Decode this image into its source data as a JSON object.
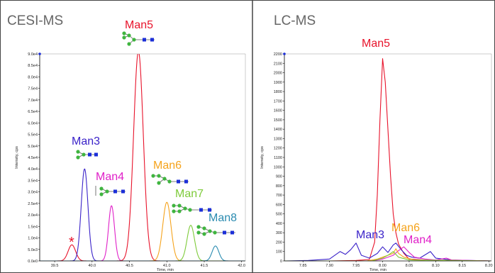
{
  "colors": {
    "man5": "#e8132b",
    "man3": "#3a22c9",
    "man4": "#e020c8",
    "man6": "#f5a31c",
    "man7": "#7ecb3a",
    "man8": "#2a8bb0",
    "impurity": "#e8132b",
    "glycan_node": "#3fb53f",
    "glycan_square": "#1c2fd8"
  },
  "chart_data": [
    {
      "type": "line",
      "title": "CESI-MS",
      "xlabel": "Time, min",
      "ylabel": "Intensity, cps",
      "xlim": [
        39.3,
        42.05
      ],
      "ylim": [
        0,
        90000
      ],
      "x_ticks": [
        39.5,
        40.0,
        40.5,
        41.0,
        41.5,
        42.0
      ],
      "x_tick_labels": [
        "39.5",
        "40.0",
        "40.5",
        "41.0",
        "41.5",
        "42.0"
      ],
      "y_ticks": [
        0,
        5000,
        10000,
        15000,
        20000,
        25000,
        30000,
        35000,
        40000,
        45000,
        50000,
        55000,
        60000,
        65000,
        70000,
        75000,
        80000,
        85000,
        90000
      ],
      "y_tick_labels": [
        "0.0e0",
        "5.0e3",
        "1.0e4",
        "1.5e4",
        "2.0e4",
        "2.5e4",
        "3.0e4",
        "3.5e4",
        "4.0e4",
        "4.5e4",
        "5.0e4",
        "5.5e4",
        "6.0e4",
        "6.5e4",
        "7.0e4",
        "7.5e4",
        "8.0e4",
        "8.5e4",
        "9.0e4"
      ],
      "series": [
        {
          "name": "*",
          "color_key": "impurity",
          "center": 39.73,
          "height": 7000,
          "width": 0.05
        },
        {
          "name": "Man3",
          "color_key": "man3",
          "center": 39.9,
          "height": 40000,
          "width": 0.045
        },
        {
          "name": "Man4",
          "color_key": "man4",
          "center": 40.26,
          "height": 24000,
          "width": 0.04
        },
        {
          "name": "Man5",
          "color_key": "man5",
          "center": 40.62,
          "height": 91000,
          "width": 0.065
        },
        {
          "name": "Man6",
          "color_key": "man6",
          "center": 41.0,
          "height": 25500,
          "width": 0.055
        },
        {
          "name": "Man7",
          "color_key": "man7",
          "center": 41.32,
          "height": 15500,
          "width": 0.05
        },
        {
          "name": "Man8",
          "color_key": "man8",
          "center": 41.65,
          "height": 6500,
          "width": 0.045
        }
      ],
      "annotations": [
        {
          "text": "*",
          "color_key": "impurity"
        },
        {
          "text": "Man3",
          "color_key": "man3"
        },
        {
          "text": "Man4",
          "color_key": "man4"
        },
        {
          "text": "Man5",
          "color_key": "man5"
        },
        {
          "text": "Man6",
          "color_key": "man6"
        },
        {
          "text": "Man7",
          "color_key": "man7"
        },
        {
          "text": "Man8",
          "color_key": "man8"
        }
      ]
    },
    {
      "type": "line",
      "title": "LC-MS",
      "xlabel": "Time, min",
      "ylabel": "Intensity, cps",
      "xlim": [
        7.815,
        8.205
      ],
      "ylim": [
        0,
        2200
      ],
      "x_ticks": [
        7.85,
        7.9,
        7.95,
        8.0,
        8.05,
        8.1,
        8.15,
        8.2
      ],
      "x_tick_labels": [
        "7.85",
        "7.90",
        "7.95",
        "8.00",
        "8.05",
        "8.10",
        "8.15",
        "8.20"
      ],
      "y_ticks": [
        0,
        100,
        200,
        300,
        400,
        500,
        600,
        700,
        800,
        900,
        1000,
        1100,
        1200,
        1300,
        1400,
        1500,
        1600,
        1700,
        1800,
        1900,
        2000,
        2100,
        2200
      ],
      "y_tick_labels": [
        "0",
        "100",
        "200",
        "300",
        "400",
        "500",
        "600",
        "700",
        "800",
        "900",
        "1000",
        "1100",
        "1200",
        "1300",
        "1400",
        "1500",
        "1600",
        "1700",
        "1800",
        "1900",
        "2000",
        "2100",
        "2200"
      ],
      "series": [
        {
          "name": "Man5",
          "color_key": "man5",
          "points": [
            [
              7.815,
              0
            ],
            [
              7.9,
              0
            ],
            [
              7.95,
              5
            ],
            [
              7.975,
              15
            ],
            [
              7.985,
              200
            ],
            [
              7.99,
              700
            ],
            [
              7.995,
              1500
            ],
            [
              8.0,
              2150
            ],
            [
              8.005,
              1900
            ],
            [
              8.01,
              1400
            ],
            [
              8.015,
              900
            ],
            [
              8.02,
              500
            ],
            [
              8.025,
              300
            ],
            [
              8.03,
              180
            ],
            [
              8.04,
              80
            ],
            [
              8.05,
              20
            ],
            [
              8.08,
              10
            ],
            [
              8.205,
              0
            ]
          ]
        },
        {
          "name": "Man3",
          "color_key": "man3",
          "points": [
            [
              7.815,
              0
            ],
            [
              7.86,
              5
            ],
            [
              7.9,
              20
            ],
            [
              7.92,
              100
            ],
            [
              7.93,
              70
            ],
            [
              7.94,
              120
            ],
            [
              7.95,
              190
            ],
            [
              7.96,
              60
            ],
            [
              7.975,
              30
            ],
            [
              7.99,
              80
            ],
            [
              8.0,
              150
            ],
            [
              8.01,
              90
            ],
            [
              8.02,
              170
            ],
            [
              8.025,
              190
            ],
            [
              8.035,
              120
            ],
            [
              8.045,
              60
            ],
            [
              8.055,
              40
            ],
            [
              8.07,
              30
            ],
            [
              8.09,
              100
            ],
            [
              8.1,
              30
            ],
            [
              8.13,
              10
            ],
            [
              8.205,
              0
            ]
          ]
        },
        {
          "name": "Man4",
          "color_key": "man4",
          "points": [
            [
              7.815,
              0
            ],
            [
              7.98,
              0
            ],
            [
              8.0,
              20
            ],
            [
              8.02,
              60
            ],
            [
              8.03,
              110
            ],
            [
              8.04,
              150
            ],
            [
              8.05,
              90
            ],
            [
              8.06,
              40
            ],
            [
              8.08,
              20
            ],
            [
              8.1,
              10
            ],
            [
              8.12,
              30
            ],
            [
              8.13,
              10
            ],
            [
              8.205,
              0
            ]
          ]
        },
        {
          "name": "Man6",
          "color_key": "man6",
          "points": [
            [
              7.815,
              0
            ],
            [
              7.97,
              0
            ],
            [
              7.99,
              20
            ],
            [
              8.0,
              40
            ],
            [
              8.01,
              60
            ],
            [
              8.02,
              80
            ],
            [
              8.025,
              130
            ],
            [
              8.03,
              80
            ],
            [
              8.04,
              40
            ],
            [
              8.06,
              10
            ],
            [
              8.205,
              0
            ]
          ]
        },
        {
          "name": "Man7",
          "color_key": "man7",
          "points": [
            [
              7.815,
              0
            ],
            [
              7.98,
              0
            ],
            [
              8.0,
              30
            ],
            [
              8.01,
              60
            ],
            [
              8.02,
              100
            ],
            [
              8.025,
              70
            ],
            [
              8.03,
              40
            ],
            [
              8.05,
              10
            ],
            [
              8.205,
              0
            ]
          ]
        }
      ],
      "annotations": [
        {
          "text": "Man5",
          "color_key": "man5"
        },
        {
          "text": "Man3",
          "color_key": "man3"
        },
        {
          "text": "Man6",
          "color_key": "man6"
        },
        {
          "text": "Man4",
          "color_key": "man4"
        }
      ]
    }
  ]
}
